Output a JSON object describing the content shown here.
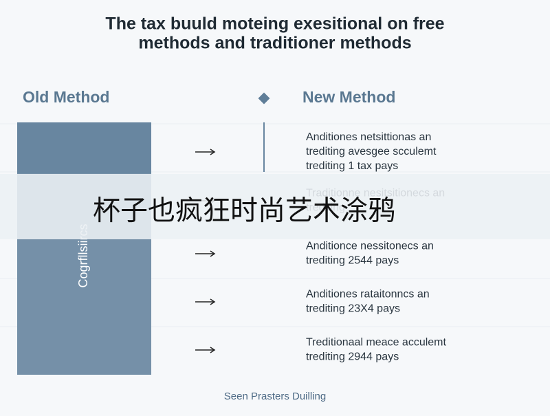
{
  "header": {
    "title_lines": [
      "The tax buuld moteing exesitional on free",
      "methods and traditioner methods"
    ]
  },
  "columns": {
    "old": "Old Method",
    "new": "New Method"
  },
  "side_label": "Cogrfllsiircs",
  "rows": [
    {
      "lines": [
        "Anditiones netsittionas an",
        "trediting avesgee scculemt",
        "trediting 1 tax pays"
      ]
    },
    {
      "lines": [
        "Traditionne nesitsitionecs an",
        "trediting"
      ]
    },
    {
      "lines": [
        "Anditionce nessitonecs an",
        "trediting 2544 pays"
      ]
    },
    {
      "lines": [
        "Anditiones rataitonncs an",
        "trediting 23Χ4 pays"
      ]
    },
    {
      "lines": [
        "Treditionaal meace acculemt",
        "trediting 2944 pays"
      ]
    }
  ],
  "overlay_text": "杯子也疯狂时尚艺术涂鸦",
  "footer": "Seen Prasters Duilling"
}
